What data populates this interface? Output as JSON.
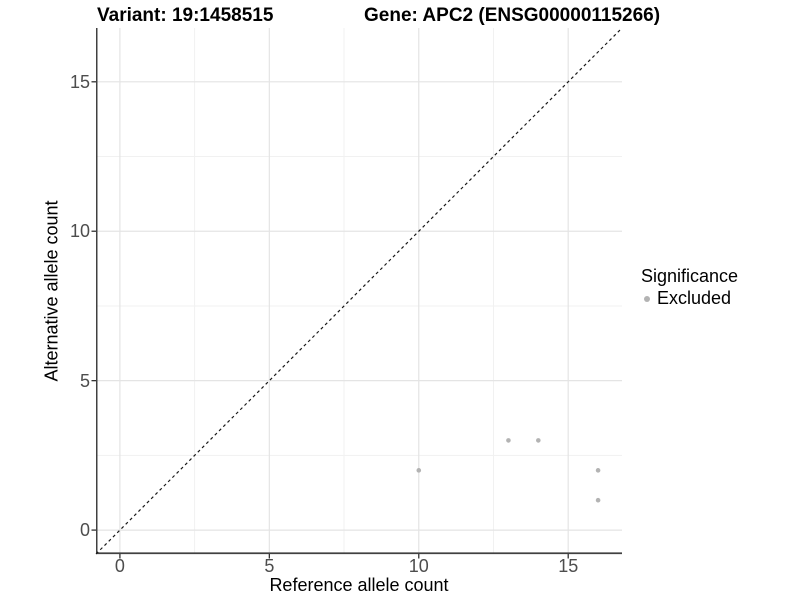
{
  "figure": {
    "title_variant": "Variant: 19:1458515",
    "title_gene": "Gene: APC2 (ENSG00000115266)"
  },
  "chart_data": {
    "type": "scatter",
    "title": "Variant: 19:1458515   Gene: APC2 (ENSG00000115266)",
    "xlabel": "Reference allele count",
    "ylabel": "Alternative allele count",
    "xlim": [
      -0.8,
      16.8
    ],
    "ylim": [
      -0.8,
      16.8
    ],
    "x_ticks": [
      {
        "value": 0,
        "label": "0"
      },
      {
        "value": 5,
        "label": "5"
      },
      {
        "value": 10,
        "label": "10"
      },
      {
        "value": 15,
        "label": "15"
      }
    ],
    "y_ticks": [
      {
        "value": 0,
        "label": "0"
      },
      {
        "value": 5,
        "label": "5"
      },
      {
        "value": 10,
        "label": "10"
      },
      {
        "value": 15,
        "label": "15"
      }
    ],
    "x_minor_gridlines": [
      2.5,
      7.5,
      12.5
    ],
    "y_minor_gridlines": [
      2.5,
      7.5,
      12.5
    ],
    "grid": "on",
    "reference_line": {
      "kind": "identity",
      "equation": "y = x",
      "style": "dashed",
      "color": "#1a1a1a"
    },
    "series": [
      {
        "name": "Excluded",
        "color": "#b3b3b3",
        "points": [
          {
            "x": 10,
            "y": 2
          },
          {
            "x": 13,
            "y": 3
          },
          {
            "x": 14,
            "y": 3
          },
          {
            "x": 16,
            "y": 2
          },
          {
            "x": 16,
            "y": 1
          }
        ]
      }
    ],
    "legend": {
      "title": "Significance",
      "position": "right",
      "items": [
        {
          "label": "Excluded",
          "color": "#b3b3b3"
        }
      ]
    }
  },
  "colors": {
    "grid_major": "#e4e4e4",
    "grid_minor": "#f1f1f1",
    "axis_line": "#404040",
    "tick_mark": "#333333",
    "tick_label": "#4d4d4d",
    "point": "#b3b3b3",
    "reference_line": "#1a1a1a"
  }
}
